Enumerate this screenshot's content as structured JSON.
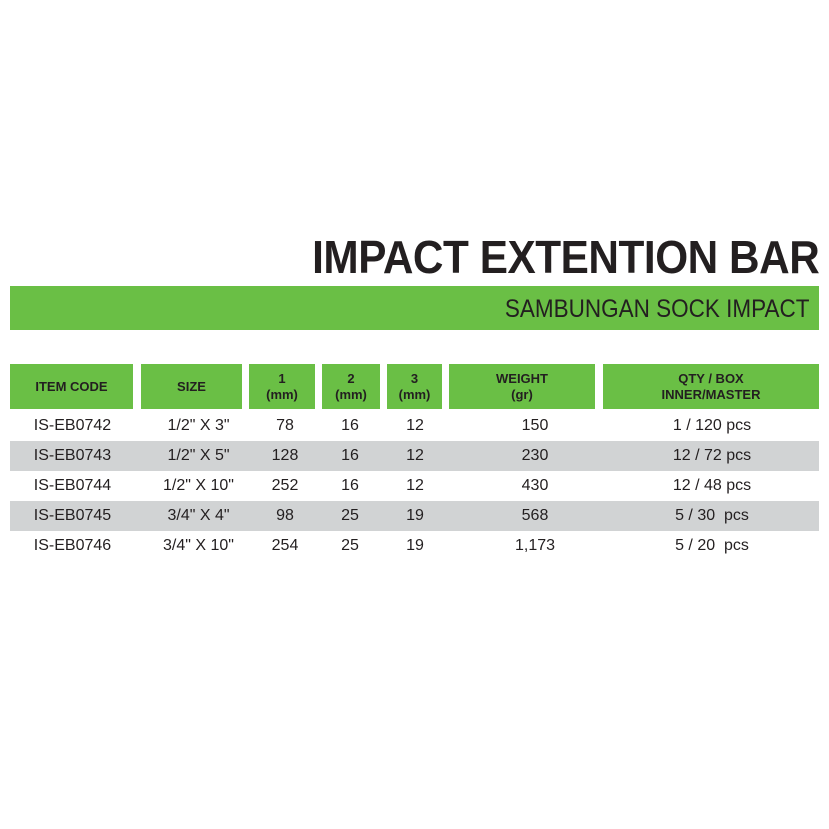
{
  "title": "IMPACT EXTENTION BAR",
  "subtitle": "SAMBUNGAN SOCK IMPACT",
  "colors": {
    "accent_green": "#6abf45",
    "row_shade": "#d1d3d4",
    "text": "#231f20"
  },
  "table": {
    "headers": [
      {
        "line1": "ITEM CODE",
        "line2": ""
      },
      {
        "line1": "SIZE",
        "line2": ""
      },
      {
        "line1": "1",
        "line2": "(mm)"
      },
      {
        "line1": "2",
        "line2": "(mm)"
      },
      {
        "line1": "3",
        "line2": "(mm)"
      },
      {
        "line1": "WEIGHT",
        "line2": "(gr)"
      },
      {
        "line1": "QTY / BOX",
        "line2": "INNER/MASTER"
      }
    ],
    "rows": [
      {
        "code": "IS-EB0742",
        "size": "1/2\" X 3\"",
        "d1": "78",
        "d2": "16",
        "d3": "12",
        "weight": "150",
        "qty": "1 / 120 pcs",
        "shaded": false
      },
      {
        "code": "IS-EB0743",
        "size": "1/2\" X 5\"",
        "d1": "128",
        "d2": "16",
        "d3": "12",
        "weight": "230",
        "qty": "12 / 72 pcs",
        "shaded": true
      },
      {
        "code": "IS-EB0744",
        "size": "1/2\" X 10\"",
        "d1": "252",
        "d2": "16",
        "d3": "12",
        "weight": "430",
        "qty": "12 / 48 pcs",
        "shaded": false
      },
      {
        "code": "IS-EB0745",
        "size": "3/4\" X 4\"",
        "d1": "98",
        "d2": "25",
        "d3": "19",
        "weight": "568",
        "qty": "5 / 30  pcs",
        "shaded": true
      },
      {
        "code": "IS-EB0746",
        "size": "3/4\" X 10\"",
        "d1": "254",
        "d2": "25",
        "d3": "19",
        "weight": "1,173",
        "qty": "5 / 20  pcs",
        "shaded": false
      }
    ]
  }
}
